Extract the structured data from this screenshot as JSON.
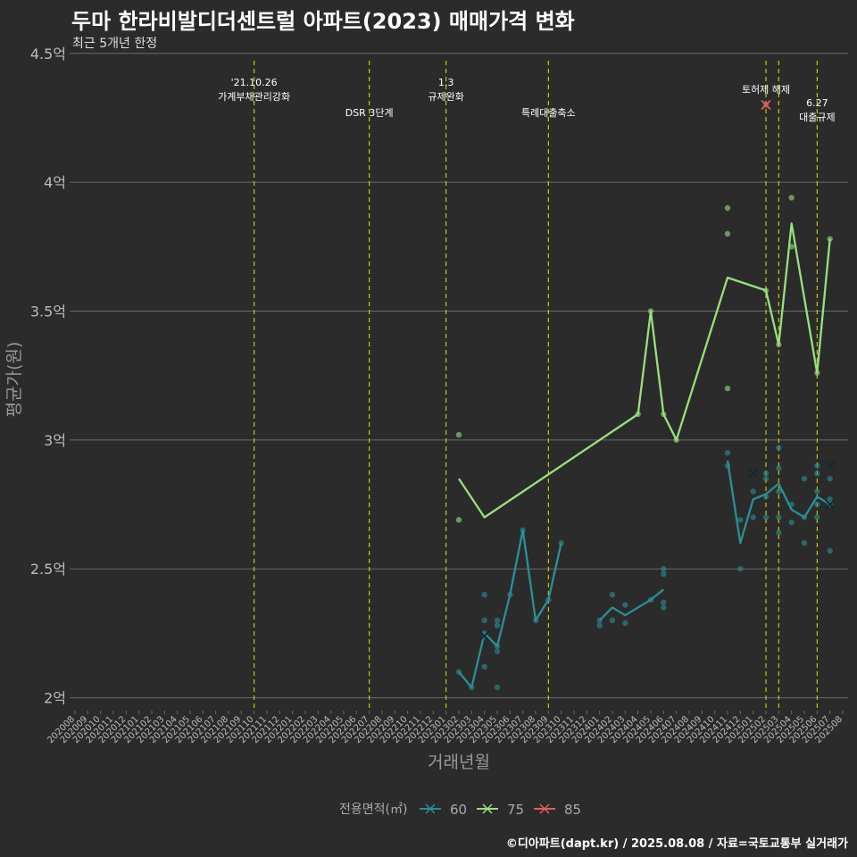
{
  "title": "두마 한라비발디더센트럴 아파트(2023) 매매가격 변화",
  "subtitle": "최근 5개년 한정",
  "caption": "©디아파트(dapt.kr) / 2025.08.08 / 자료=국토교통부 실거래가",
  "colors": {
    "background": "#2b2b2b",
    "grid": "#6a6a6a",
    "event_line": "#d4d400",
    "text": "#ffffff",
    "axis_text": "#bbbbbb"
  },
  "chart_data": {
    "type": "line",
    "xlabel": "거래년월",
    "ylabel": "평균가(원)",
    "x_categories": [
      "202008",
      "202009",
      "202010",
      "202011",
      "202012",
      "202101",
      "202102",
      "202103",
      "202104",
      "202105",
      "202106",
      "202107",
      "202108",
      "202109",
      "202110",
      "202111",
      "202112",
      "202201",
      "202202",
      "202203",
      "202204",
      "202205",
      "202206",
      "202207",
      "202208",
      "202209",
      "202210",
      "202211",
      "202212",
      "202301",
      "202302",
      "202303",
      "202304",
      "202305",
      "202306",
      "202307",
      "202308",
      "202309",
      "202310",
      "202311",
      "202312",
      "202401",
      "202402",
      "202403",
      "202404",
      "202405",
      "202406",
      "202407",
      "202408",
      "202409",
      "202410",
      "202411",
      "202412",
      "202501",
      "202502",
      "202503",
      "202504",
      "202505",
      "202506",
      "202507",
      "202508"
    ],
    "y_ticks": [
      {
        "value": 2.0,
        "label": "2억"
      },
      {
        "value": 2.5,
        "label": "2.5억"
      },
      {
        "value": 3.0,
        "label": "3억"
      },
      {
        "value": 3.5,
        "label": "3.5억"
      },
      {
        "value": 4.0,
        "label": "4억"
      },
      {
        "value": 4.5,
        "label": "4.5억"
      }
    ],
    "ylim": [
      1.95,
      4.52
    ],
    "grid": true,
    "legend": {
      "title": "전용면적(㎡)",
      "position": "bottom"
    },
    "events": [
      {
        "x": "202110",
        "label": "'21.10.26\n가계부채관리강화",
        "row": 1
      },
      {
        "x": "202207",
        "label": "DSR 3단계",
        "row": 2
      },
      {
        "x": "202301",
        "label": "1.3\n규제완화",
        "row": 1
      },
      {
        "x": "202309",
        "label": "특례대출축소",
        "row": 2
      },
      {
        "x": "202502",
        "label": "토허제 해제",
        "row": 0
      },
      {
        "x": "202503",
        "label": "",
        "row": 0
      },
      {
        "x": "202506",
        "label": "6.27\n대출규제",
        "row": 3
      }
    ],
    "series": [
      {
        "name": "60",
        "color": "#2a9095",
        "segments": [
          [
            [
              "202302",
              2.1
            ],
            [
              "202303",
              2.04
            ],
            [
              "202304",
              2.25
            ],
            [
              "202305",
              2.2
            ],
            [
              "202306",
              2.4
            ],
            [
              "202307",
              2.65
            ],
            [
              "202308",
              2.3
            ],
            [
              "202309",
              2.38
            ],
            [
              "202310",
              2.6
            ]
          ],
          [
            [
              "202401",
              2.3
            ],
            [
              "202402",
              2.35
            ],
            [
              "202403",
              2.32
            ],
            [
              "202405",
              2.38
            ],
            [
              "202406",
              2.42
            ]
          ],
          [
            [
              "202411",
              2.92
            ],
            [
              "202412",
              2.6
            ],
            [
              "202501",
              2.77
            ],
            [
              "202502",
              2.79
            ],
            [
              "202503",
              2.83
            ],
            [
              "202504",
              2.73
            ],
            [
              "202505",
              2.7
            ],
            [
              "202506",
              2.78
            ],
            [
              "202507",
              2.75
            ]
          ]
        ],
        "points": [
          [
            "202302",
            2.1
          ],
          [
            "202303",
            2.04
          ],
          [
            "202304",
            2.4
          ],
          [
            "202304",
            2.3
          ],
          [
            "202304",
            2.25
          ],
          [
            "202304",
            2.12
          ],
          [
            "202305",
            2.3
          ],
          [
            "202305",
            2.28
          ],
          [
            "202305",
            2.2
          ],
          [
            "202305",
            2.18
          ],
          [
            "202305",
            2.04
          ],
          [
            "202306",
            2.4
          ],
          [
            "202307",
            2.65
          ],
          [
            "202308",
            2.3
          ],
          [
            "202309",
            2.38
          ],
          [
            "202310",
            2.6
          ],
          [
            "202401",
            2.3
          ],
          [
            "202401",
            2.28
          ],
          [
            "202402",
            2.4
          ],
          [
            "202402",
            2.3
          ],
          [
            "202403",
            2.36
          ],
          [
            "202403",
            2.29
          ],
          [
            "202405",
            2.38
          ],
          [
            "202406",
            2.5
          ],
          [
            "202406",
            2.48
          ],
          [
            "202406",
            2.37
          ],
          [
            "202406",
            2.35
          ],
          [
            "202411",
            2.95
          ],
          [
            "202411",
            2.9
          ],
          [
            "202412",
            2.69
          ],
          [
            "202412",
            2.5
          ],
          [
            "202501",
            2.8
          ],
          [
            "202501",
            2.7
          ],
          [
            "202502",
            2.87
          ],
          [
            "202502",
            2.85
          ],
          [
            "202502",
            2.78
          ],
          [
            "202502",
            2.7
          ],
          [
            "202503",
            2.97
          ],
          [
            "202503",
            2.89
          ],
          [
            "202503",
            2.8
          ],
          [
            "202503",
            2.7
          ],
          [
            "202503",
            2.64
          ],
          [
            "202504",
            2.75
          ],
          [
            "202504",
            2.68
          ],
          [
            "202505",
            2.85
          ],
          [
            "202505",
            2.7
          ],
          [
            "202505",
            2.6
          ],
          [
            "202506",
            2.9
          ],
          [
            "202506",
            2.87
          ],
          [
            "202506",
            2.8
          ],
          [
            "202506",
            2.75
          ],
          [
            "202506",
            2.7
          ],
          [
            "202507",
            2.85
          ],
          [
            "202507",
            2.77
          ],
          [
            "202507",
            2.75
          ],
          [
            "202507",
            2.57
          ]
        ],
        "x_marks": [
          [
            "202304",
            2.24
          ],
          [
            "202501",
            2.87
          ],
          [
            "202507",
            2.9
          ],
          [
            "202507",
            2.75
          ]
        ]
      },
      {
        "name": "75",
        "color": "#98e07e",
        "segments": [
          [
            [
              "202302",
              2.85
            ],
            [
              "202304",
              2.7
            ],
            [
              "202404",
              3.1
            ],
            [
              "202405",
              3.5
            ],
            [
              "202406",
              3.1
            ],
            [
              "202407",
              3.0
            ],
            [
              "202411",
              3.63
            ],
            [
              "202502",
              3.58
            ],
            [
              "202503",
              3.37
            ],
            [
              "202504",
              3.84
            ],
            [
              "202506",
              3.26
            ],
            [
              "202507",
              3.78
            ]
          ]
        ],
        "points": [
          [
            "202302",
            3.02
          ],
          [
            "202302",
            2.69
          ],
          [
            "202404",
            3.1
          ],
          [
            "202405",
            3.5
          ],
          [
            "202406",
            3.1
          ],
          [
            "202407",
            3.0
          ],
          [
            "202411",
            3.9
          ],
          [
            "202411",
            3.8
          ],
          [
            "202411",
            3.2
          ],
          [
            "202502",
            3.58
          ],
          [
            "202503",
            3.37
          ],
          [
            "202504",
            3.94
          ],
          [
            "202504",
            3.75
          ],
          [
            "202506",
            3.26
          ],
          [
            "202507",
            3.78
          ]
        ],
        "x_marks": []
      },
      {
        "name": "85",
        "color": "#e0605a",
        "segments": [],
        "points": [
          [
            "202502",
            4.3
          ]
        ],
        "x_marks": [
          [
            "202502",
            4.3
          ]
        ]
      }
    ]
  }
}
